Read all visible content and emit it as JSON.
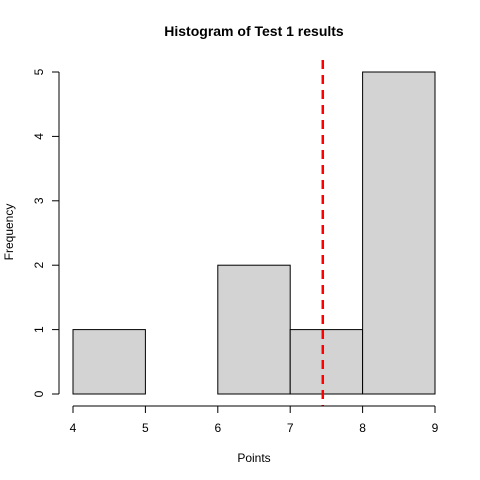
{
  "chart_data": {
    "type": "bar",
    "title": "Histogram of Test 1 results",
    "xlabel": "Points",
    "ylabel": "Frequency",
    "bins": [
      {
        "start": 4,
        "end": 5,
        "count": 1
      },
      {
        "start": 5,
        "end": 6,
        "count": 0
      },
      {
        "start": 6,
        "end": 7,
        "count": 2
      },
      {
        "start": 7,
        "end": 8,
        "count": 1
      },
      {
        "start": 8,
        "end": 9,
        "count": 5
      }
    ],
    "xlim": [
      4,
      9
    ],
    "ylim": [
      0,
      5
    ],
    "x_ticks": [
      "4",
      "5",
      "6",
      "7",
      "8",
      "9"
    ],
    "y_ticks": [
      "0",
      "1",
      "2",
      "3",
      "4",
      "5"
    ],
    "reference_line": {
      "x": 7.45,
      "color": "#ff0000",
      "style": "dashed"
    },
    "bar_fill": "#d3d3d3",
    "grid": false
  }
}
